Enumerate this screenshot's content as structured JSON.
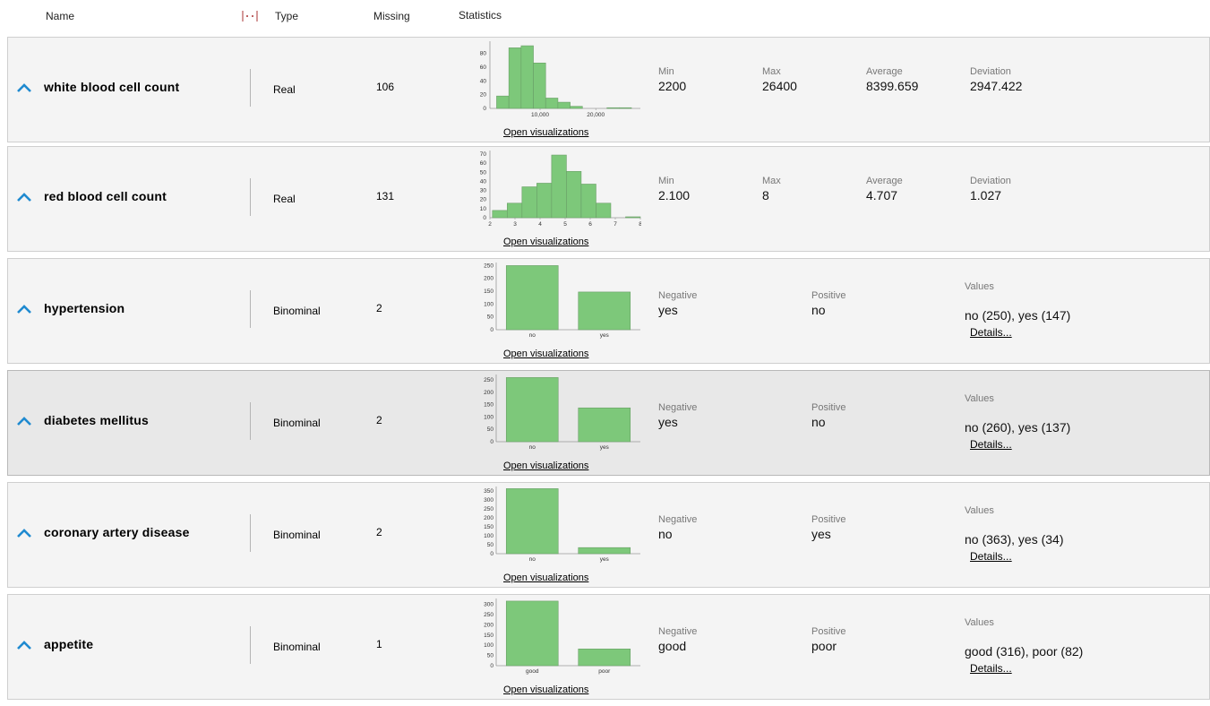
{
  "header": {
    "name": "Name",
    "type": "Type",
    "missing": "Missing",
    "statistics": "Statistics"
  },
  "link_label": "Open visualizations",
  "details_label": "Details...",
  "colors": {
    "bar_fill": "#7dc87a",
    "bar_stroke": "#6a9e67",
    "accent_icon": "#1f8ad0"
  },
  "rows": [
    {
      "name": "white blood cell count",
      "type": "Real",
      "missing": "106",
      "stats": [
        {
          "label": "Min",
          "value": "2200"
        },
        {
          "label": "Max",
          "value": "26400"
        },
        {
          "label": "Average",
          "value": "8399.659"
        },
        {
          "label": "Deviation",
          "value": "2947.422"
        }
      ],
      "chart_data": {
        "type": "bar",
        "kind": "histogram",
        "x_range": [
          1000,
          28000
        ],
        "bins": [
          {
            "start": 2200,
            "end": 4400,
            "count": 18
          },
          {
            "start": 4400,
            "end": 6600,
            "count": 88
          },
          {
            "start": 6600,
            "end": 8800,
            "count": 91
          },
          {
            "start": 8800,
            "end": 11000,
            "count": 66
          },
          {
            "start": 11000,
            "end": 13200,
            "count": 15
          },
          {
            "start": 13200,
            "end": 15400,
            "count": 9
          },
          {
            "start": 15400,
            "end": 17600,
            "count": 3
          },
          {
            "start": 17600,
            "end": 19800,
            "count": 0
          },
          {
            "start": 19800,
            "end": 22000,
            "count": 0
          },
          {
            "start": 22000,
            "end": 24200,
            "count": 1
          },
          {
            "start": 24200,
            "end": 26400,
            "count": 1
          }
        ],
        "ylim": [
          0,
          95
        ],
        "yticks": [
          "0",
          "20",
          "40",
          "60",
          "80"
        ],
        "xticks": [
          {
            "v": 10000,
            "label": "10,000"
          },
          {
            "v": 20000,
            "label": "20,000"
          }
        ]
      }
    },
    {
      "name": "red blood cell count",
      "type": "Real",
      "missing": "131",
      "stats": [
        {
          "label": "Min",
          "value": "2.100"
        },
        {
          "label": "Max",
          "value": "8"
        },
        {
          "label": "Average",
          "value": "4.707"
        },
        {
          "label": "Deviation",
          "value": "1.027"
        }
      ],
      "chart_data": {
        "type": "bar",
        "kind": "histogram",
        "x_range": [
          2,
          8
        ],
        "bins": [
          {
            "start": 2.1,
            "end": 2.69,
            "count": 8
          },
          {
            "start": 2.69,
            "end": 3.28,
            "count": 16
          },
          {
            "start": 3.28,
            "end": 3.87,
            "count": 34
          },
          {
            "start": 3.87,
            "end": 4.46,
            "count": 38
          },
          {
            "start": 4.46,
            "end": 5.05,
            "count": 69
          },
          {
            "start": 5.05,
            "end": 5.64,
            "count": 51
          },
          {
            "start": 5.64,
            "end": 6.23,
            "count": 37
          },
          {
            "start": 6.23,
            "end": 6.82,
            "count": 16
          },
          {
            "start": 6.82,
            "end": 7.41,
            "count": 0
          },
          {
            "start": 7.41,
            "end": 8.0,
            "count": 1
          }
        ],
        "ylim": [
          0,
          72
        ],
        "yticks": [
          "0",
          "10",
          "20",
          "30",
          "40",
          "50",
          "60",
          "70"
        ],
        "xticks": [
          {
            "v": 2,
            "label": "2"
          },
          {
            "v": 3,
            "label": "3"
          },
          {
            "v": 4,
            "label": "4"
          },
          {
            "v": 5,
            "label": "5"
          },
          {
            "v": 6,
            "label": "6"
          },
          {
            "v": 7,
            "label": "7"
          },
          {
            "v": 8,
            "label": "8"
          }
        ]
      }
    },
    {
      "name": "hypertension",
      "type": "Binominal",
      "missing": "2",
      "negative": {
        "label": "Negative",
        "value": "yes"
      },
      "positive": {
        "label": "Positive",
        "value": "no"
      },
      "values": {
        "label": "Values",
        "value": "no (250), yes (147)"
      },
      "chart_data": {
        "type": "bar",
        "categories": [
          "no",
          "yes"
        ],
        "values": [
          250,
          147
        ],
        "ylim": [
          0,
          255
        ],
        "yticks": [
          "0",
          "50",
          "100",
          "150",
          "200",
          "250"
        ]
      }
    },
    {
      "name": "diabetes mellitus",
      "type": "Binominal",
      "missing": "2",
      "selected": true,
      "negative": {
        "label": "Negative",
        "value": "yes"
      },
      "positive": {
        "label": "Positive",
        "value": "no"
      },
      "values": {
        "label": "Values",
        "value": "no (260), yes (137)"
      },
      "chart_data": {
        "type": "bar",
        "categories": [
          "no",
          "yes"
        ],
        "values": [
          260,
          137
        ],
        "ylim": [
          0,
          265
        ],
        "yticks": [
          "0",
          "50",
          "100",
          "150",
          "200",
          "250"
        ]
      }
    },
    {
      "name": "coronary artery disease",
      "type": "Binominal",
      "missing": "2",
      "negative": {
        "label": "Negative",
        "value": "no"
      },
      "positive": {
        "label": "Positive",
        "value": "yes"
      },
      "values": {
        "label": "Values",
        "value": "no (363), yes (34)"
      },
      "chart_data": {
        "type": "bar",
        "categories": [
          "no",
          "yes"
        ],
        "values": [
          363,
          34
        ],
        "ylim": [
          0,
          365
        ],
        "yticks": [
          "0",
          "50",
          "100",
          "150",
          "200",
          "250",
          "300",
          "350"
        ]
      }
    },
    {
      "name": "appetite",
      "type": "Binominal",
      "missing": "1",
      "negative": {
        "label": "Negative",
        "value": "good"
      },
      "positive": {
        "label": "Positive",
        "value": "poor"
      },
      "values": {
        "label": "Values",
        "value": "good (316), poor (82)"
      },
      "chart_data": {
        "type": "bar",
        "categories": [
          "good",
          "poor"
        ],
        "values": [
          316,
          82
        ],
        "ylim": [
          0,
          320
        ],
        "yticks": [
          "0",
          "50",
          "100",
          "150",
          "200",
          "250",
          "300"
        ]
      }
    }
  ]
}
